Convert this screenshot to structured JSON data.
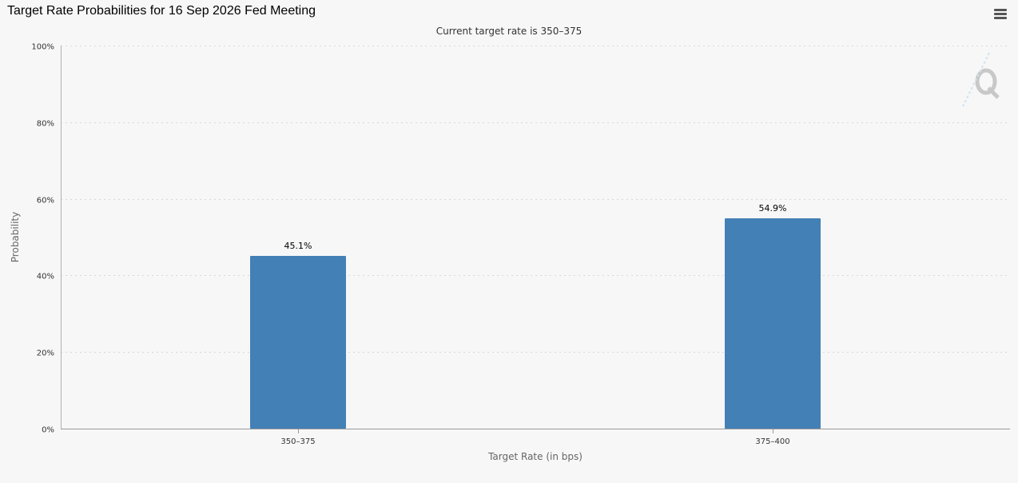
{
  "chart_title": "Target Rate Probabilities for 16 Sep 2026 Fed Meeting",
  "icons": {
    "menu": "hamburger-menu-icon",
    "watermark": "q-logo-watermark"
  },
  "colors": {
    "bar": "#4380b6",
    "gridline": "#d8d8d8",
    "background": "#f7f7f7",
    "watermark": "#c8c8c8"
  },
  "chart_data": {
    "type": "bar",
    "title": "Target Rate Probabilities for 16 Sep 2026 Fed Meeting",
    "subtitle": "Current target rate is 350–375",
    "xlabel": "Target Rate (in bps)",
    "ylabel": "Probability",
    "categories": [
      "350–375",
      "375–400"
    ],
    "values": [
      45.1,
      54.9
    ],
    "data_labels": [
      "45.1%",
      "54.9%"
    ],
    "ylim": [
      0,
      100
    ],
    "yticks": [
      0,
      20,
      40,
      60,
      80,
      100
    ],
    "ytick_labels": [
      "0%",
      "20%",
      "40%",
      "60%",
      "80%",
      "100%"
    ],
    "grid": true,
    "legend": "none"
  }
}
